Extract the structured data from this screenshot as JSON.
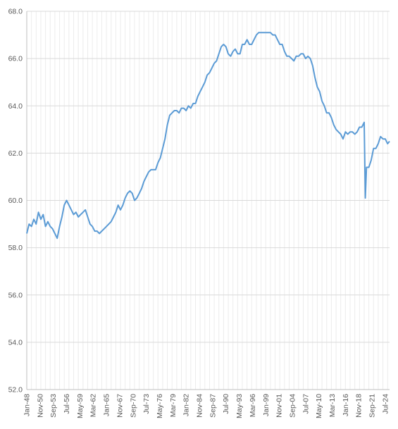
{
  "chart_data": {
    "type": "line",
    "title": "",
    "xlabel": "",
    "ylabel": "",
    "ylim": [
      52.0,
      68.0
    ],
    "y_ticks": [
      "52.0",
      "54.0",
      "56.0",
      "58.0",
      "60.0",
      "62.0",
      "64.0",
      "66.0",
      "68.0"
    ],
    "x_ticks": [
      "Jan-48",
      "Nov-50",
      "Sep-53",
      "Jul-56",
      "May-59",
      "Mar-62",
      "Jan-65",
      "Nov-67",
      "Sep-70",
      "Jul-73",
      "May-76",
      "Mar-79",
      "Jan-82",
      "Nov-84",
      "Sep-87",
      "Jul-90",
      "May-93",
      "Mar-96",
      "Jan-99",
      "Nov-01",
      "Sep-04",
      "Jul-07",
      "May-10",
      "Mar-13",
      "Jan-16",
      "Nov-18",
      "Sep-21",
      "Jul-24"
    ],
    "grid": "vertical and horizontal",
    "legend": "none",
    "line_color": "#5b9bd5",
    "x_range": [
      "Jan-48",
      "Jun-25"
    ],
    "series": [
      {
        "points": [
          [
            "Jan-48",
            58.6
          ],
          [
            "Jul-48",
            59.0
          ],
          [
            "Jan-49",
            58.9
          ],
          [
            "Jul-49",
            59.2
          ],
          [
            "Jan-50",
            59.0
          ],
          [
            "Jul-50",
            59.5
          ],
          [
            "Jan-51",
            59.2
          ],
          [
            "Jul-51",
            59.4
          ],
          [
            "Jan-52",
            58.9
          ],
          [
            "Jul-52",
            59.1
          ],
          [
            "Jan-53",
            58.9
          ],
          [
            "Jul-53",
            58.8
          ],
          [
            "Jan-54",
            58.6
          ],
          [
            "Jul-54",
            58.4
          ],
          [
            "Jan-55",
            58.9
          ],
          [
            "Jul-55",
            59.3
          ],
          [
            "Jan-56",
            59.8
          ],
          [
            "Jul-56",
            60.0
          ],
          [
            "Jan-57",
            59.8
          ],
          [
            "Jul-57",
            59.6
          ],
          [
            "Jan-58",
            59.4
          ],
          [
            "Jul-58",
            59.5
          ],
          [
            "Jan-59",
            59.3
          ],
          [
            "Jul-59",
            59.4
          ],
          [
            "Jan-60",
            59.5
          ],
          [
            "Jul-60",
            59.6
          ],
          [
            "Jan-61",
            59.3
          ],
          [
            "Jul-61",
            59.0
          ],
          [
            "Jan-62",
            58.9
          ],
          [
            "Jul-62",
            58.7
          ],
          [
            "Jan-63",
            58.7
          ],
          [
            "Jul-63",
            58.6
          ],
          [
            "Jan-64",
            58.7
          ],
          [
            "Jul-64",
            58.8
          ],
          [
            "Jan-65",
            58.9
          ],
          [
            "Jul-65",
            59.0
          ],
          [
            "Jan-66",
            59.1
          ],
          [
            "Jul-66",
            59.3
          ],
          [
            "Jan-67",
            59.5
          ],
          [
            "Jul-67",
            59.8
          ],
          [
            "Jan-68",
            59.6
          ],
          [
            "Jul-68",
            59.8
          ],
          [
            "Jan-69",
            60.1
          ],
          [
            "Jul-69",
            60.3
          ],
          [
            "Jan-70",
            60.4
          ],
          [
            "Jul-70",
            60.3
          ],
          [
            "Jan-71",
            60.0
          ],
          [
            "Jul-71",
            60.1
          ],
          [
            "Jan-72",
            60.3
          ],
          [
            "Jul-72",
            60.5
          ],
          [
            "Jan-73",
            60.8
          ],
          [
            "Jul-73",
            61.0
          ],
          [
            "Jan-74",
            61.2
          ],
          [
            "Jul-74",
            61.3
          ],
          [
            "Jan-75",
            61.3
          ],
          [
            "Jul-75",
            61.3
          ],
          [
            "Jan-76",
            61.6
          ],
          [
            "Jul-76",
            61.8
          ],
          [
            "Jan-77",
            62.2
          ],
          [
            "Jul-77",
            62.6
          ],
          [
            "Jan-78",
            63.2
          ],
          [
            "Jul-78",
            63.6
          ],
          [
            "Jan-79",
            63.7
          ],
          [
            "Jul-79",
            63.8
          ],
          [
            "Jan-80",
            63.8
          ],
          [
            "Jul-80",
            63.7
          ],
          [
            "Jan-81",
            63.9
          ],
          [
            "Jul-81",
            63.9
          ],
          [
            "Jan-82",
            63.8
          ],
          [
            "Jul-82",
            64.0
          ],
          [
            "Jan-83",
            63.9
          ],
          [
            "Jul-83",
            64.1
          ],
          [
            "Jan-84",
            64.1
          ],
          [
            "Jul-84",
            64.4
          ],
          [
            "Jan-85",
            64.6
          ],
          [
            "Jul-85",
            64.8
          ],
          [
            "Jan-86",
            65.0
          ],
          [
            "Jul-86",
            65.3
          ],
          [
            "Jan-87",
            65.4
          ],
          [
            "Jul-87",
            65.6
          ],
          [
            "Jan-88",
            65.8
          ],
          [
            "Jul-88",
            65.9
          ],
          [
            "Jan-89",
            66.2
          ],
          [
            "Jul-89",
            66.5
          ],
          [
            "Jan-90",
            66.6
          ],
          [
            "Jul-90",
            66.5
          ],
          [
            "Jan-91",
            66.2
          ],
          [
            "Jul-91",
            66.1
          ],
          [
            "Jan-92",
            66.3
          ],
          [
            "Jul-92",
            66.4
          ],
          [
            "Jan-93",
            66.2
          ],
          [
            "Jul-93",
            66.2
          ],
          [
            "Jan-94",
            66.6
          ],
          [
            "Jul-94",
            66.6
          ],
          [
            "Jan-95",
            66.8
          ],
          [
            "Jul-95",
            66.6
          ],
          [
            "Jan-96",
            66.6
          ],
          [
            "Jul-96",
            66.8
          ],
          [
            "Jan-97",
            67.0
          ],
          [
            "Jul-97",
            67.1
          ],
          [
            "Jan-98",
            67.1
          ],
          [
            "Jul-98",
            67.1
          ],
          [
            "Jan-99",
            67.1
          ],
          [
            "Jul-99",
            67.1
          ],
          [
            "Jan-00",
            67.1
          ],
          [
            "Jul-00",
            67.0
          ],
          [
            "Jan-01",
            67.0
          ],
          [
            "Jul-01",
            66.8
          ],
          [
            "Jan-02",
            66.6
          ],
          [
            "Jul-02",
            66.6
          ],
          [
            "Jan-03",
            66.3
          ],
          [
            "Jul-03",
            66.1
          ],
          [
            "Jan-04",
            66.1
          ],
          [
            "Jul-04",
            66.0
          ],
          [
            "Jan-05",
            65.9
          ],
          [
            "Jul-05",
            66.1
          ],
          [
            "Jan-06",
            66.1
          ],
          [
            "Jul-06",
            66.2
          ],
          [
            "Jan-07",
            66.2
          ],
          [
            "Jul-07",
            66.0
          ],
          [
            "Jan-08",
            66.1
          ],
          [
            "Jul-08",
            66.0
          ],
          [
            "Jan-09",
            65.7
          ],
          [
            "Jul-09",
            65.2
          ],
          [
            "Jan-10",
            64.8
          ],
          [
            "Jul-10",
            64.6
          ],
          [
            "Jan-11",
            64.2
          ],
          [
            "Jul-11",
            64.0
          ],
          [
            "Jan-12",
            63.7
          ],
          [
            "Jul-12",
            63.7
          ],
          [
            "Jan-13",
            63.5
          ],
          [
            "Jul-13",
            63.2
          ],
          [
            "Jan-14",
            63.0
          ],
          [
            "Jul-14",
            62.9
          ],
          [
            "Jan-15",
            62.8
          ],
          [
            "Jul-15",
            62.6
          ],
          [
            "Jan-16",
            62.9
          ],
          [
            "Jul-16",
            62.8
          ],
          [
            "Jan-17",
            62.9
          ],
          [
            "Jul-17",
            62.9
          ],
          [
            "Jan-18",
            62.8
          ],
          [
            "Jul-18",
            62.9
          ],
          [
            "Jan-19",
            63.1
          ],
          [
            "Jul-19",
            63.1
          ],
          [
            "Jan-20",
            63.3
          ],
          [
            "Apr-20",
            60.1
          ],
          [
            "Jul-20",
            61.4
          ],
          [
            "Jan-21",
            61.4
          ],
          [
            "Jul-21",
            61.7
          ],
          [
            "Jan-22",
            62.2
          ],
          [
            "Jul-22",
            62.2
          ],
          [
            "Jan-23",
            62.4
          ],
          [
            "Jul-23",
            62.7
          ],
          [
            "Jan-24",
            62.6
          ],
          [
            "Jul-24",
            62.6
          ],
          [
            "Jan-25",
            62.4
          ],
          [
            "Jun-25",
            62.5
          ]
        ]
      }
    ]
  }
}
